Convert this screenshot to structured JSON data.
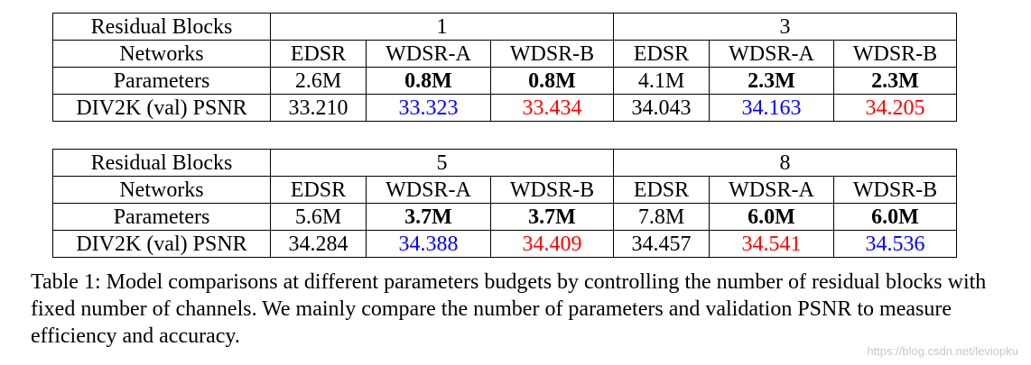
{
  "tables": [
    {
      "groups": [
        {
          "blocks": "1"
        },
        {
          "blocks": "3"
        }
      ],
      "row_labels": {
        "blocks": "Residual Blocks",
        "networks": "Networks",
        "parameters": "Parameters",
        "psnr": "DIV2K (val) PSNR"
      },
      "networks": [
        "EDSR",
        "WDSR-A",
        "WDSR-B",
        "EDSR",
        "WDSR-A",
        "WDSR-B"
      ],
      "parameters": [
        "2.6M",
        "0.8M",
        "0.8M",
        "4.1M",
        "2.3M",
        "2.3M"
      ],
      "psnr": [
        "33.210",
        "33.323",
        "33.434",
        "34.043",
        "34.163",
        "34.205"
      ]
    },
    {
      "groups": [
        {
          "blocks": "5"
        },
        {
          "blocks": "8"
        }
      ],
      "row_labels": {
        "blocks": "Residual Blocks",
        "networks": "Networks",
        "parameters": "Parameters",
        "psnr": "DIV2K (val) PSNR"
      },
      "networks": [
        "EDSR",
        "WDSR-A",
        "WDSR-B",
        "EDSR",
        "WDSR-A",
        "WDSR-B"
      ],
      "parameters": [
        "5.6M",
        "3.7M",
        "3.7M",
        "7.8M",
        "6.0M",
        "6.0M"
      ],
      "psnr": [
        "34.284",
        "34.388",
        "34.409",
        "34.457",
        "34.541",
        "34.536"
      ]
    }
  ],
  "colors": {
    "best": "#ff0000",
    "second": "#0000ff",
    "default": "#000000"
  },
  "caption": "Table 1: Model comparisons at different parameters budgets by controlling the number of residual blocks with fixed number of channels. We mainly compare the number of parameters and validation PSNR to measure efficiency and accuracy.",
  "watermark": "https://blog.csdn.net/leviopku"
}
